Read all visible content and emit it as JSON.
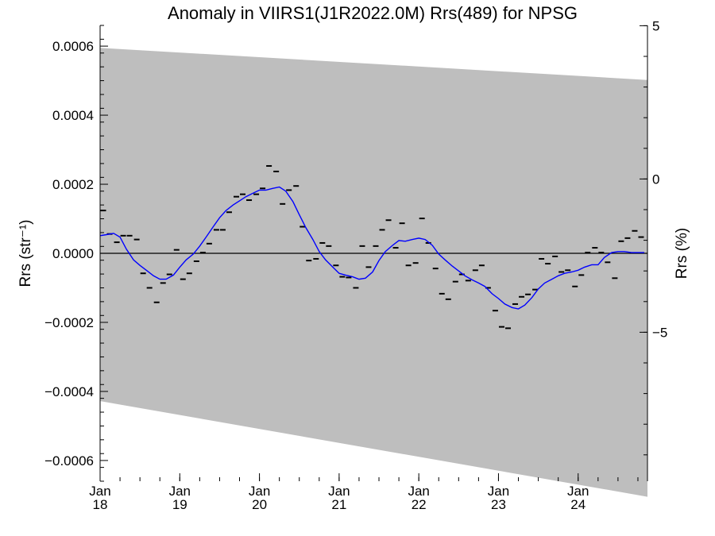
{
  "chart_data": {
    "type": "line",
    "title": "Anomaly in VIIRS1(J1R2022.0M) Rrs(489) for NPSG",
    "ylabel_left": "Rrs (str⁻¹)",
    "ylabel_right": "Rrs (%)",
    "xlabel": "",
    "x_ticks": [
      {
        "x": 2018.0,
        "line1": "Jan",
        "line2": "18"
      },
      {
        "x": 2019.0,
        "line1": "Jan",
        "line2": "19"
      },
      {
        "x": 2020.0,
        "line1": "Jan",
        "line2": "20"
      },
      {
        "x": 2021.0,
        "line1": "Jan",
        "line2": "21"
      },
      {
        "x": 2022.0,
        "line1": "Jan",
        "line2": "22"
      },
      {
        "x": 2023.0,
        "line1": "Jan",
        "line2": "23"
      },
      {
        "x": 2024.0,
        "line1": "Jan",
        "line2": "24"
      }
    ],
    "xlim": [
      2018.0,
      2024.87
    ],
    "ylim": [
      -0.00066,
      0.00066
    ],
    "y_ticks": [
      {
        "value": 0.0006,
        "label": "0.0006"
      },
      {
        "value": 0.0004,
        "label": "0.0004"
      },
      {
        "value": 0.0002,
        "label": "0.0002"
      },
      {
        "value": 0.0,
        "label": "0.0000"
      },
      {
        "value": -0.0002,
        "label": "−0.0002"
      },
      {
        "value": -0.0004,
        "label": "−0.0004"
      },
      {
        "value": -0.0006,
        "label": "−0.0006"
      }
    ],
    "y2_ticks": [
      {
        "value": 5,
        "label": "5"
      },
      {
        "value": 0,
        "label": "0"
      },
      {
        "value": -5,
        "label": "−5"
      }
    ],
    "y2lim": [
      -9.86,
      5.01
    ],
    "band": {
      "upper": [
        [
          2018.0,
          0.000595
        ],
        [
          2024.87,
          0.000502
        ]
      ],
      "lower": [
        [
          2018.0,
          -0.000428
        ],
        [
          2024.87,
          -0.000705
        ]
      ],
      "color": "#bebebe"
    },
    "zero_line": true,
    "series": [
      {
        "name": "",
        "style": "dash",
        "color": "#000000",
        "points": [
          [
            2018.04,
            0.000124
          ],
          [
            2018.12,
            5.6e-05
          ],
          [
            2018.21,
            3.2e-05
          ],
          [
            2018.29,
            5.1e-05
          ],
          [
            2018.37,
            5.1e-05
          ],
          [
            2018.46,
            4e-05
          ],
          [
            2018.54,
            -5.8e-05
          ],
          [
            2018.62,
            -0.0001
          ],
          [
            2018.71,
            -0.000142
          ],
          [
            2018.79,
            -8.6e-05
          ],
          [
            2018.87,
            -6.1e-05
          ],
          [
            2018.96,
            1e-05
          ],
          [
            2019.04,
            -7.5e-05
          ],
          [
            2019.12,
            -5.8e-05
          ],
          [
            2019.21,
            -2.3e-05
          ],
          [
            2019.29,
            2e-06
          ],
          [
            2019.37,
            2.8e-05
          ],
          [
            2019.46,
            6.8e-05
          ],
          [
            2019.54,
            6.8e-05
          ],
          [
            2019.62,
            0.000119
          ],
          [
            2019.71,
            0.000164
          ],
          [
            2019.79,
            0.000171
          ],
          [
            2019.87,
            0.000154
          ],
          [
            2019.96,
            0.000171
          ],
          [
            2020.04,
            0.000188
          ],
          [
            2020.12,
            0.000253
          ],
          [
            2020.21,
            0.000237
          ],
          [
            2020.29,
            0.000143
          ],
          [
            2020.37,
            0.000183
          ],
          [
            2020.46,
            0.000195
          ],
          [
            2020.54,
            7.7e-05
          ],
          [
            2020.62,
            -2.1e-05
          ],
          [
            2020.71,
            -1.6e-05
          ],
          [
            2020.79,
            3e-05
          ],
          [
            2020.87,
            2.1e-05
          ],
          [
            2020.96,
            -3.5e-05
          ],
          [
            2021.04,
            -6.8e-05
          ],
          [
            2021.12,
            -7e-05
          ],
          [
            2021.21,
            -0.0001
          ],
          [
            2021.29,
            2.1e-05
          ],
          [
            2021.37,
            -4e-05
          ],
          [
            2021.46,
            2.1e-05
          ],
          [
            2021.54,
            6.8e-05
          ],
          [
            2021.62,
            9.6e-05
          ],
          [
            2021.71,
            1.6e-05
          ],
          [
            2021.79,
            8.7e-05
          ],
          [
            2021.87,
            -3.5e-05
          ],
          [
            2021.96,
            -2.8e-05
          ],
          [
            2022.04,
            0.000101
          ],
          [
            2022.12,
            3e-05
          ],
          [
            2022.21,
            -4.4e-05
          ],
          [
            2022.29,
            -0.000117
          ],
          [
            2022.37,
            -0.000133
          ],
          [
            2022.46,
            -8.2e-05
          ],
          [
            2022.54,
            -6.1e-05
          ],
          [
            2022.62,
            -7.9e-05
          ],
          [
            2022.71,
            -4.9e-05
          ],
          [
            2022.79,
            -3.5e-05
          ],
          [
            2022.87,
            -0.0001
          ],
          [
            2022.96,
            -0.000166
          ],
          [
            2023.04,
            -0.000213
          ],
          [
            2023.12,
            -0.000217
          ],
          [
            2023.21,
            -0.000147
          ],
          [
            2023.29,
            -0.000126
          ],
          [
            2023.37,
            -0.000119
          ],
          [
            2023.46,
            -0.000105
          ],
          [
            2023.54,
            -1.6e-05
          ],
          [
            2023.62,
            -3e-05
          ],
          [
            2023.71,
            -9e-06
          ],
          [
            2023.79,
            -5.4e-05
          ],
          [
            2023.87,
            -4.9e-05
          ],
          [
            2023.96,
            -9.6e-05
          ],
          [
            2024.04,
            -6.3e-05
          ],
          [
            2024.12,
            2e-06
          ],
          [
            2024.21,
            1.6e-05
          ],
          [
            2024.29,
            2e-06
          ],
          [
            2024.37,
            -2.6e-05
          ],
          [
            2024.46,
            -7.2e-05
          ],
          [
            2024.54,
            3.5e-05
          ],
          [
            2024.62,
            4.4e-05
          ],
          [
            2024.71,
            6.5e-05
          ],
          [
            2024.79,
            4.7e-05
          ]
        ]
      },
      {
        "name": "",
        "style": "line",
        "color": "#0000ff",
        "points": [
          [
            2018.0,
            5.1e-05
          ],
          [
            2018.08,
            5.4e-05
          ],
          [
            2018.17,
            5.8e-05
          ],
          [
            2018.25,
            4.7e-05
          ],
          [
            2018.33,
            1.2e-05
          ],
          [
            2018.42,
            -1.9e-05
          ],
          [
            2018.5,
            -3.5e-05
          ],
          [
            2018.58,
            -4.9e-05
          ],
          [
            2018.67,
            -6.5e-05
          ],
          [
            2018.75,
            -7.5e-05
          ],
          [
            2018.83,
            -7.5e-05
          ],
          [
            2018.92,
            -6.3e-05
          ],
          [
            2019.0,
            -4e-05
          ],
          [
            2019.08,
            -1.9e-05
          ],
          [
            2019.17,
            -2e-06
          ],
          [
            2019.25,
            2.1e-05
          ],
          [
            2019.33,
            4.7e-05
          ],
          [
            2019.42,
            7.7e-05
          ],
          [
            2019.5,
            0.000103
          ],
          [
            2019.58,
            0.000124
          ],
          [
            2019.67,
            0.00014
          ],
          [
            2019.75,
            0.000152
          ],
          [
            2019.83,
            0.000164
          ],
          [
            2019.92,
            0.000174
          ],
          [
            2020.0,
            0.000183
          ],
          [
            2020.08,
            0.000183
          ],
          [
            2020.17,
            0.000188
          ],
          [
            2020.25,
            0.000192
          ],
          [
            2020.33,
            0.00018
          ],
          [
            2020.42,
            0.00015
          ],
          [
            2020.5,
            0.000112
          ],
          [
            2020.58,
            7.5e-05
          ],
          [
            2020.67,
            4e-05
          ],
          [
            2020.75,
            5e-06
          ],
          [
            2020.83,
            -1.9e-05
          ],
          [
            2020.92,
            -4e-05
          ],
          [
            2021.0,
            -5.8e-05
          ],
          [
            2021.08,
            -6.3e-05
          ],
          [
            2021.17,
            -6.8e-05
          ],
          [
            2021.25,
            -7.5e-05
          ],
          [
            2021.33,
            -7.2e-05
          ],
          [
            2021.42,
            -5.4e-05
          ],
          [
            2021.5,
            -2.1e-05
          ],
          [
            2021.58,
            5e-06
          ],
          [
            2021.67,
            2.3e-05
          ],
          [
            2021.75,
            3.7e-05
          ],
          [
            2021.83,
            3.5e-05
          ],
          [
            2021.92,
            4e-05
          ],
          [
            2022.0,
            4.4e-05
          ],
          [
            2022.08,
            4e-05
          ],
          [
            2022.17,
            2.3e-05
          ],
          [
            2022.25,
            -2e-06
          ],
          [
            2022.33,
            -1.9e-05
          ],
          [
            2022.42,
            -3.7e-05
          ],
          [
            2022.5,
            -5.1e-05
          ],
          [
            2022.58,
            -6.5e-05
          ],
          [
            2022.67,
            -7.7e-05
          ],
          [
            2022.75,
            -8.6e-05
          ],
          [
            2022.83,
            -9.6e-05
          ],
          [
            2022.92,
            -0.000117
          ],
          [
            2023.0,
            -0.000131
          ],
          [
            2023.08,
            -0.000147
          ],
          [
            2023.17,
            -0.000157
          ],
          [
            2023.25,
            -0.000161
          ],
          [
            2023.33,
            -0.00015
          ],
          [
            2023.42,
            -0.000128
          ],
          [
            2023.5,
            -0.000103
          ],
          [
            2023.58,
            -8.6e-05
          ],
          [
            2023.67,
            -7.5e-05
          ],
          [
            2023.75,
            -6.5e-05
          ],
          [
            2023.83,
            -5.8e-05
          ],
          [
            2023.92,
            -5.4e-05
          ],
          [
            2024.0,
            -4.9e-05
          ],
          [
            2024.08,
            -4e-05
          ],
          [
            2024.17,
            -3.3e-05
          ],
          [
            2024.25,
            -3.3e-05
          ],
          [
            2024.33,
            -1.2e-05
          ],
          [
            2024.42,
            2e-06
          ],
          [
            2024.5,
            5e-06
          ],
          [
            2024.58,
            5e-06
          ],
          [
            2024.67,
            2e-06
          ],
          [
            2024.75,
            2e-06
          ],
          [
            2024.83,
            2e-06
          ]
        ]
      }
    ]
  }
}
